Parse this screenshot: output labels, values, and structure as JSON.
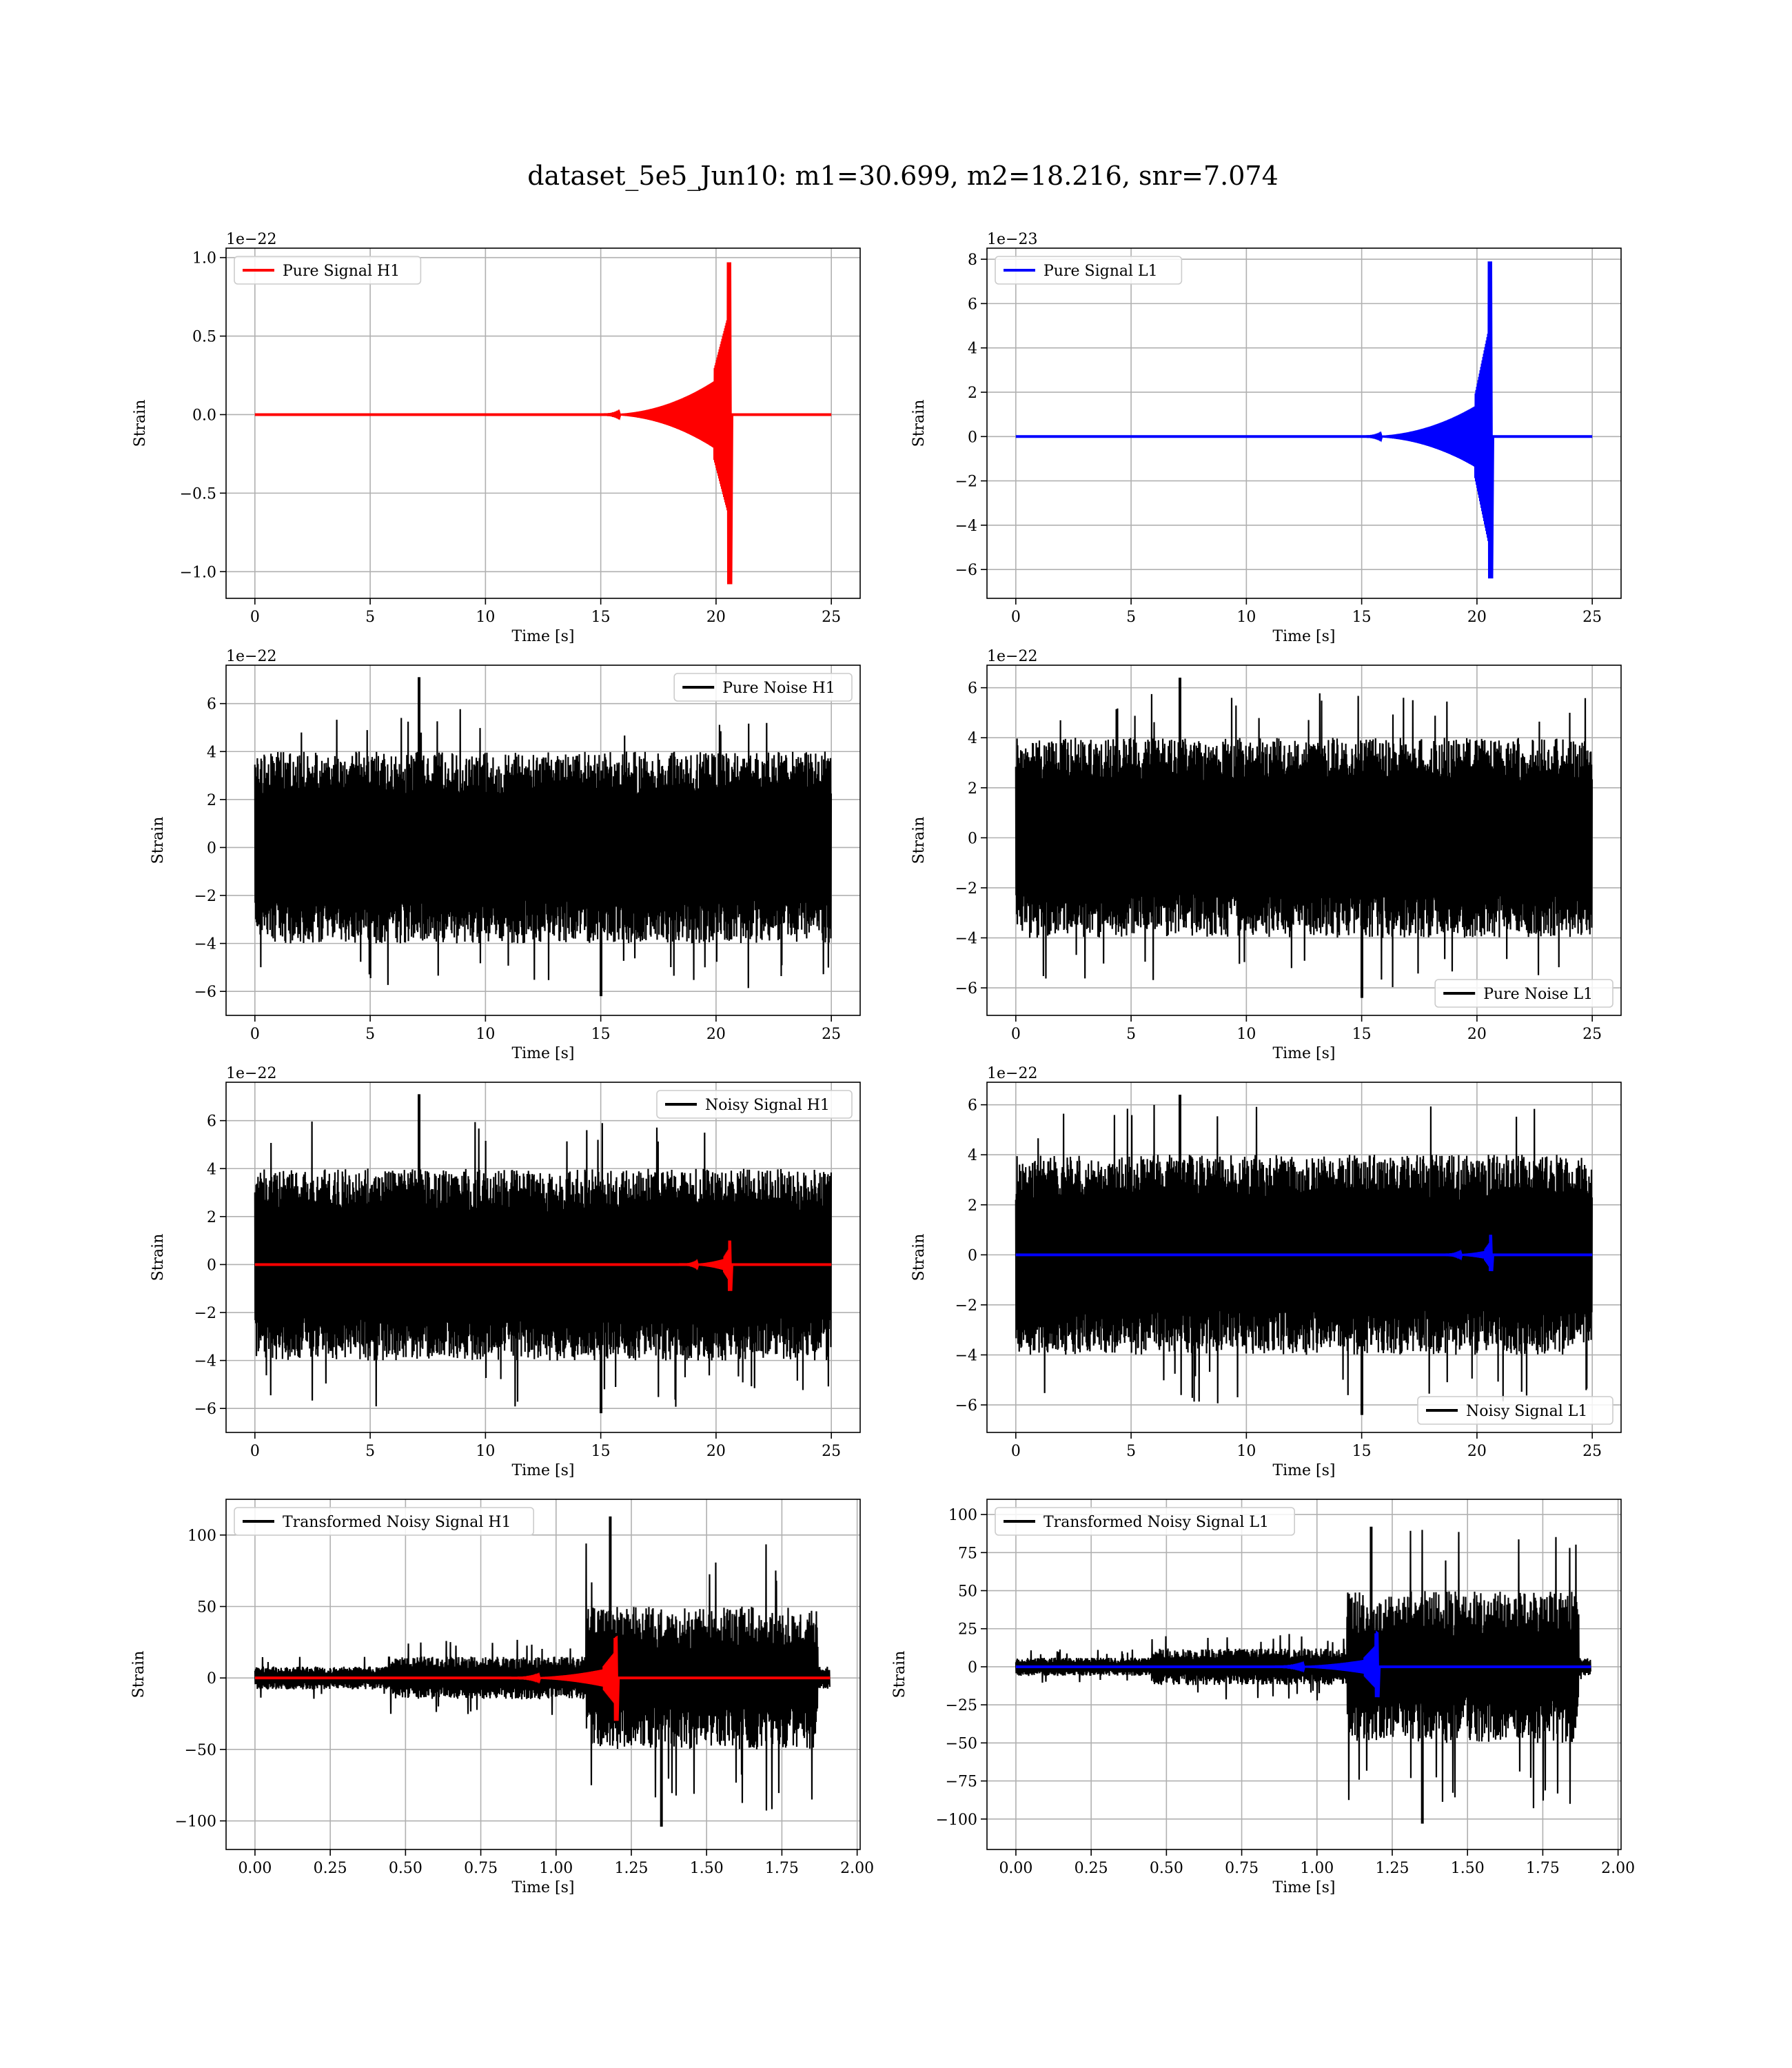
{
  "figure": {
    "title": "dataset_5e5_Jun10: m1=30.699, m2=18.216, snr=7.074"
  },
  "chart_data": [
    {
      "type": "line",
      "title": "",
      "xlabel": "Time [s]",
      "ylabel": "Strain",
      "offset_label": "1e−22",
      "xlim": [
        -1.25,
        26.25
      ],
      "ylim": [
        -1.17,
        1.06
      ],
      "xticks": [
        0,
        5,
        10,
        15,
        20,
        25
      ],
      "xtick_labels": [
        "0",
        "5",
        "10",
        "15",
        "20",
        "25"
      ],
      "yticks": [
        -1.0,
        -0.5,
        0.0,
        0.5,
        1.0
      ],
      "ytick_labels": [
        "−1.0",
        "−0.5",
        "0.0",
        "0.5",
        "1.0"
      ],
      "grid": true,
      "legend_position": "upper-left",
      "series": [
        {
          "name": "Pure Signal H1",
          "kind": "chirp",
          "color": "#ff0000",
          "x_range": [
            0,
            25
          ],
          "chirp_start": 15,
          "chirp_merge": 20.6,
          "early_amp": 0.28,
          "peak_max": 0.97,
          "peak_min": -1.08
        }
      ]
    },
    {
      "type": "line",
      "title": "",
      "xlabel": "Time [s]",
      "ylabel": "Strain",
      "offset_label": "1e−23",
      "xlim": [
        -1.25,
        26.25
      ],
      "ylim": [
        -7.3,
        8.5
      ],
      "xticks": [
        0,
        5,
        10,
        15,
        20,
        25
      ],
      "xtick_labels": [
        "0",
        "5",
        "10",
        "15",
        "20",
        "25"
      ],
      "yticks": [
        -6,
        -4,
        -2,
        0,
        2,
        4,
        6,
        8
      ],
      "ytick_labels": [
        "−6",
        "−4",
        "−2",
        "0",
        "2",
        "4",
        "6",
        "8"
      ],
      "grid": true,
      "legend_position": "upper-left",
      "series": [
        {
          "name": "Pure Signal L1",
          "kind": "chirp",
          "color": "#0000ff",
          "x_range": [
            0,
            25
          ],
          "chirp_start": 15,
          "chirp_merge": 20.6,
          "early_amp": 1.8,
          "peak_max": 7.9,
          "peak_min": -6.4
        }
      ]
    },
    {
      "type": "line",
      "title": "",
      "xlabel": "Time [s]",
      "ylabel": "Strain",
      "offset_label": "1e−22",
      "xlim": [
        -1.25,
        26.25
      ],
      "ylim": [
        -7.0,
        7.6
      ],
      "xticks": [
        0,
        5,
        10,
        15,
        20,
        25
      ],
      "xtick_labels": [
        "0",
        "5",
        "10",
        "15",
        "20",
        "25"
      ],
      "yticks": [
        -6,
        -4,
        -2,
        0,
        2,
        4,
        6
      ],
      "ytick_labels": [
        "−6",
        "−4",
        "−2",
        "0",
        "2",
        "4",
        "6"
      ],
      "grid": true,
      "legend_position": "upper-right",
      "series": [
        {
          "name": "Pure Noise H1",
          "kind": "noise",
          "color": "#000000",
          "x_range": [
            0,
            25
          ],
          "band": 4.0,
          "peak_max": 7.1,
          "peak_min": -6.2
        }
      ]
    },
    {
      "type": "line",
      "title": "",
      "xlabel": "Time [s]",
      "ylabel": "Strain",
      "offset_label": "1e−22",
      "xlim": [
        -1.25,
        26.25
      ],
      "ylim": [
        -7.1,
        6.9
      ],
      "xticks": [
        0,
        5,
        10,
        15,
        20,
        25
      ],
      "xtick_labels": [
        "0",
        "5",
        "10",
        "15",
        "20",
        "25"
      ],
      "yticks": [
        -6,
        -4,
        -2,
        0,
        2,
        4,
        6
      ],
      "ytick_labels": [
        "−6",
        "−4",
        "−2",
        "0",
        "2",
        "4",
        "6"
      ],
      "grid": true,
      "legend_position": "lower-right",
      "series": [
        {
          "name": "Pure Noise L1",
          "kind": "noise",
          "color": "#000000",
          "x_range": [
            0,
            25
          ],
          "band": 4.0,
          "peak_max": 6.4,
          "peak_min": -6.4
        }
      ]
    },
    {
      "type": "line",
      "title": "",
      "xlabel": "Time [s]",
      "ylabel": "Strain",
      "offset_label": "1e−22",
      "xlim": [
        -1.25,
        26.25
      ],
      "ylim": [
        -7.0,
        7.6
      ],
      "xticks": [
        0,
        5,
        10,
        15,
        20,
        25
      ],
      "xtick_labels": [
        "0",
        "5",
        "10",
        "15",
        "20",
        "25"
      ],
      "yticks": [
        -6,
        -4,
        -2,
        0,
        2,
        4,
        6
      ],
      "ytick_labels": [
        "−6",
        "−4",
        "−2",
        "0",
        "2",
        "4",
        "6"
      ],
      "grid": true,
      "legend_position": "upper-right",
      "series": [
        {
          "name": "Noisy Signal H1",
          "kind": "noise",
          "color": "#000000",
          "x_range": [
            0,
            25
          ],
          "band": 4.0,
          "peak_max": 7.1,
          "peak_min": -6.2
        },
        {
          "name": "",
          "kind": "chirp",
          "color": "#ff0000",
          "x_range": [
            0,
            25
          ],
          "chirp_start": 18.5,
          "chirp_merge": 20.6,
          "early_amp": 0.3,
          "peak_max": 1.0,
          "peak_min": -1.1
        }
      ]
    },
    {
      "type": "line",
      "title": "",
      "xlabel": "Time [s]",
      "ylabel": "Strain",
      "offset_label": "1e−22",
      "xlim": [
        -1.25,
        26.25
      ],
      "ylim": [
        -7.1,
        6.9
      ],
      "xticks": [
        0,
        5,
        10,
        15,
        20,
        25
      ],
      "xtick_labels": [
        "0",
        "5",
        "10",
        "15",
        "20",
        "25"
      ],
      "yticks": [
        -6,
        -4,
        -2,
        0,
        2,
        4,
        6
      ],
      "ytick_labels": [
        "−6",
        "−4",
        "−2",
        "0",
        "2",
        "4",
        "6"
      ],
      "grid": true,
      "legend_position": "lower-right",
      "series": [
        {
          "name": "Noisy Signal L1",
          "kind": "noise",
          "color": "#000000",
          "x_range": [
            0,
            25
          ],
          "band": 4.0,
          "peak_max": 6.4,
          "peak_min": -6.4
        },
        {
          "name": "",
          "kind": "chirp",
          "color": "#0000ff",
          "x_range": [
            0,
            25
          ],
          "chirp_start": 18.5,
          "chirp_merge": 20.6,
          "early_amp": 0.2,
          "peak_max": 0.8,
          "peak_min": -0.65
        }
      ]
    },
    {
      "type": "line",
      "title": "",
      "xlabel": "Time [s]",
      "ylabel": "Strain",
      "offset_label": "",
      "xlim": [
        -0.096,
        2.01
      ],
      "ylim": [
        -120,
        125
      ],
      "xticks": [
        0.0,
        0.25,
        0.5,
        0.75,
        1.0,
        1.25,
        1.5,
        1.75,
        2.0
      ],
      "xtick_labels": [
        "0.00",
        "0.25",
        "0.50",
        "0.75",
        "1.00",
        "1.25",
        "1.50",
        "1.75",
        "2.00"
      ],
      "yticks": [
        -100,
        -50,
        0,
        50,
        100
      ],
      "ytick_labels": [
        "−100",
        "−50",
        "0",
        "50",
        "100"
      ],
      "grid": true,
      "legend_position": "upper-left",
      "series": [
        {
          "name": "Transformed Noisy Signal H1",
          "kind": "transformed_noise",
          "color": "#000000",
          "x_range": [
            0,
            1.91
          ],
          "segments": [
            {
              "x0": 0.0,
              "x1": 0.45,
              "amp": 8
            },
            {
              "x0": 0.45,
              "x1": 1.1,
              "amp": 15
            },
            {
              "x0": 1.1,
              "x1": 1.87,
              "amp": 50
            },
            {
              "x0": 1.87,
              "x1": 1.91,
              "amp": 8
            }
          ],
          "peak_max": 113,
          "peak_min": -104
        },
        {
          "name": "",
          "kind": "chirp",
          "color": "#ff0000",
          "x_range": [
            0,
            1.91
          ],
          "chirp_start": 0.85,
          "chirp_merge": 1.2,
          "early_amp": 8,
          "peak_max": 28,
          "peak_min": -30
        }
      ]
    },
    {
      "type": "line",
      "title": "",
      "xlabel": "Time [s]",
      "ylabel": "Strain",
      "offset_label": "",
      "xlim": [
        -0.096,
        2.01
      ],
      "ylim": [
        -120,
        110
      ],
      "xticks": [
        0.0,
        0.25,
        0.5,
        0.75,
        1.0,
        1.25,
        1.5,
        1.75,
        2.0
      ],
      "xtick_labels": [
        "0.00",
        "0.25",
        "0.50",
        "0.75",
        "1.00",
        "1.25",
        "1.50",
        "1.75",
        "2.00"
      ],
      "yticks": [
        -100,
        -75,
        -50,
        -25,
        0,
        25,
        50,
        75,
        100
      ],
      "ytick_labels": [
        "−100",
        "−75",
        "−50",
        "−25",
        "0",
        "25",
        "50",
        "75",
        "100"
      ],
      "grid": true,
      "legend_position": "upper-left",
      "series": [
        {
          "name": "Transformed Noisy Signal L1",
          "kind": "transformed_noise",
          "color": "#000000",
          "x_range": [
            0,
            1.91
          ],
          "segments": [
            {
              "x0": 0.0,
              "x1": 0.45,
              "amp": 6
            },
            {
              "x0": 0.45,
              "x1": 1.1,
              "amp": 12
            },
            {
              "x0": 1.1,
              "x1": 1.87,
              "amp": 50
            },
            {
              "x0": 1.87,
              "x1": 1.91,
              "amp": 6
            }
          ],
          "peak_max": 92,
          "peak_min": -103
        },
        {
          "name": "",
          "kind": "chirp",
          "color": "#0000ff",
          "x_range": [
            0,
            1.91
          ],
          "chirp_start": 0.85,
          "chirp_merge": 1.2,
          "early_amp": 6,
          "peak_max": 22,
          "peak_min": -20
        }
      ]
    }
  ]
}
